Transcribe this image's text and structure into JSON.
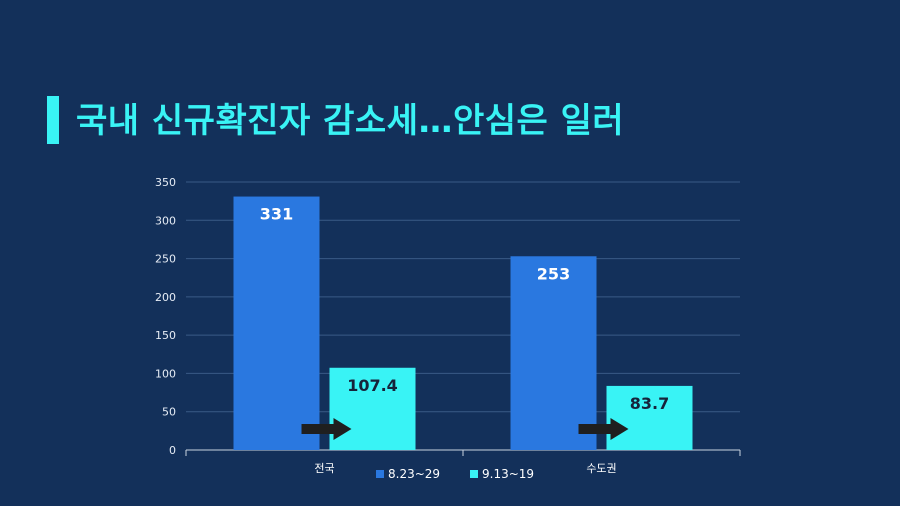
{
  "title": "국내 신규확진자 감소세…안심은 일러",
  "colors": {
    "background": "#13305a",
    "accent": "#39f3f5",
    "series1": "#2a78e0",
    "series2": "#39f3f5",
    "arrow": "#1f1f1f"
  },
  "chart_data": {
    "type": "bar",
    "categories": [
      "전국",
      "수도권"
    ],
    "series": [
      {
        "name": "8.23~29",
        "values": [
          331,
          253
        ]
      },
      {
        "name": "9.13~19",
        "values": [
          107.4,
          83.7
        ]
      }
    ],
    "data_labels": [
      [
        "331",
        "107.4"
      ],
      [
        "253",
        "83.7"
      ]
    ],
    "ylim": [
      0,
      350
    ],
    "yticks": [
      0,
      50,
      100,
      150,
      200,
      250,
      300,
      350
    ],
    "grid": true,
    "legend": "bottom",
    "annotations": [
      "arrow-right",
      "arrow-right"
    ]
  }
}
